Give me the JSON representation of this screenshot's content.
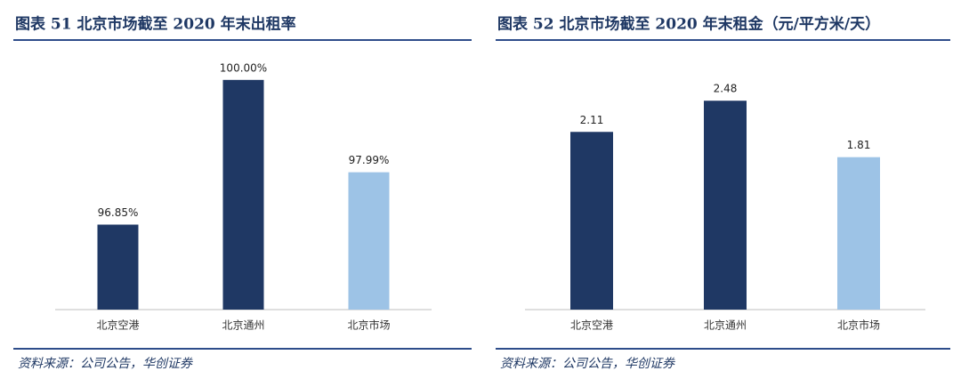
{
  "chart_data": [
    {
      "type": "bar",
      "title": "图表 51 北京市场截至 2020 年末出租率",
      "categories": [
        "北京空港",
        "北京通州",
        "北京市场"
      ],
      "values": [
        96.85,
        100.0,
        97.99
      ],
      "value_labels": [
        "96.85%",
        "100.00%",
        "97.99%"
      ],
      "colors": [
        "#1f3864",
        "#1f3864",
        "#9dc3e6"
      ],
      "ylim": [
        95,
        100.5
      ],
      "source": "资料来源：公司公告，华创证券"
    },
    {
      "type": "bar",
      "title": "图表 52 北京市场截至 2020 年末租金（元/平方米/天）",
      "categories": [
        "北京空港",
        "北京通州",
        "北京市场"
      ],
      "values": [
        2.11,
        2.48,
        1.81
      ],
      "colors": [
        "#1f3864",
        "#1f3864",
        "#9dc3e6"
      ],
      "ylim": [
        0,
        3
      ],
      "source": "资料来源：公司公告，华创证券"
    }
  ]
}
